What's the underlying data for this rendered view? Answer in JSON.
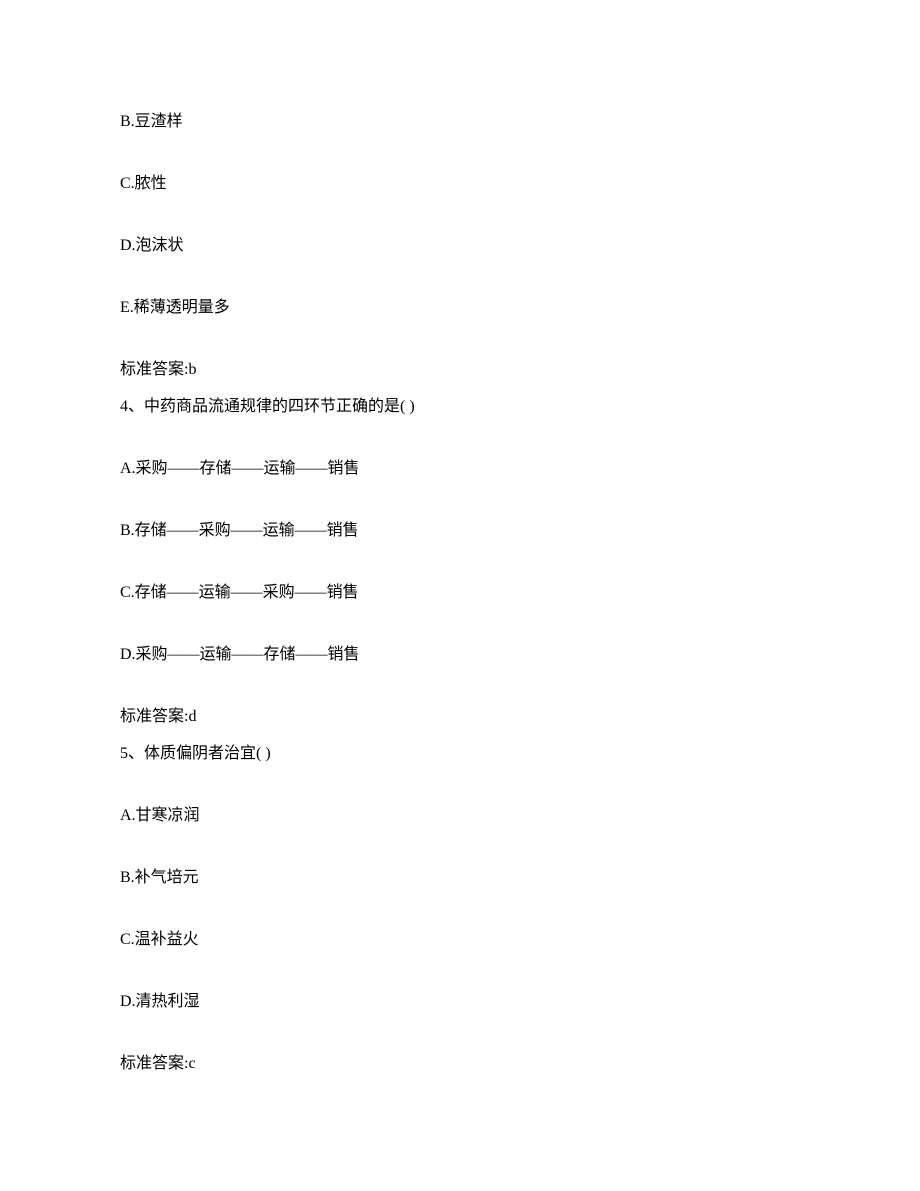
{
  "q3": {
    "option_b": "B.豆渣样",
    "option_c": "C.脓性",
    "option_d": "D.泡沫状",
    "option_e": "E.稀薄透明量多",
    "answer": "标准答案:b"
  },
  "q4": {
    "stem": "4、中药商品流通规律的四环节正确的是( )",
    "option_a": "A.采购——存储——运输——销售",
    "option_b": "B.存储——采购——运输——销售",
    "option_c": "C.存储——运输——采购——销售",
    "option_d": "D.采购——运输——存储——销售",
    "answer": "标准答案:d"
  },
  "q5": {
    "stem": "5、体质偏阴者治宜( )",
    "option_a": "A.甘寒凉润",
    "option_b": "B.补气培元",
    "option_c": "C.温补益火",
    "option_d": "D.清热利湿",
    "answer": "标准答案:c"
  }
}
